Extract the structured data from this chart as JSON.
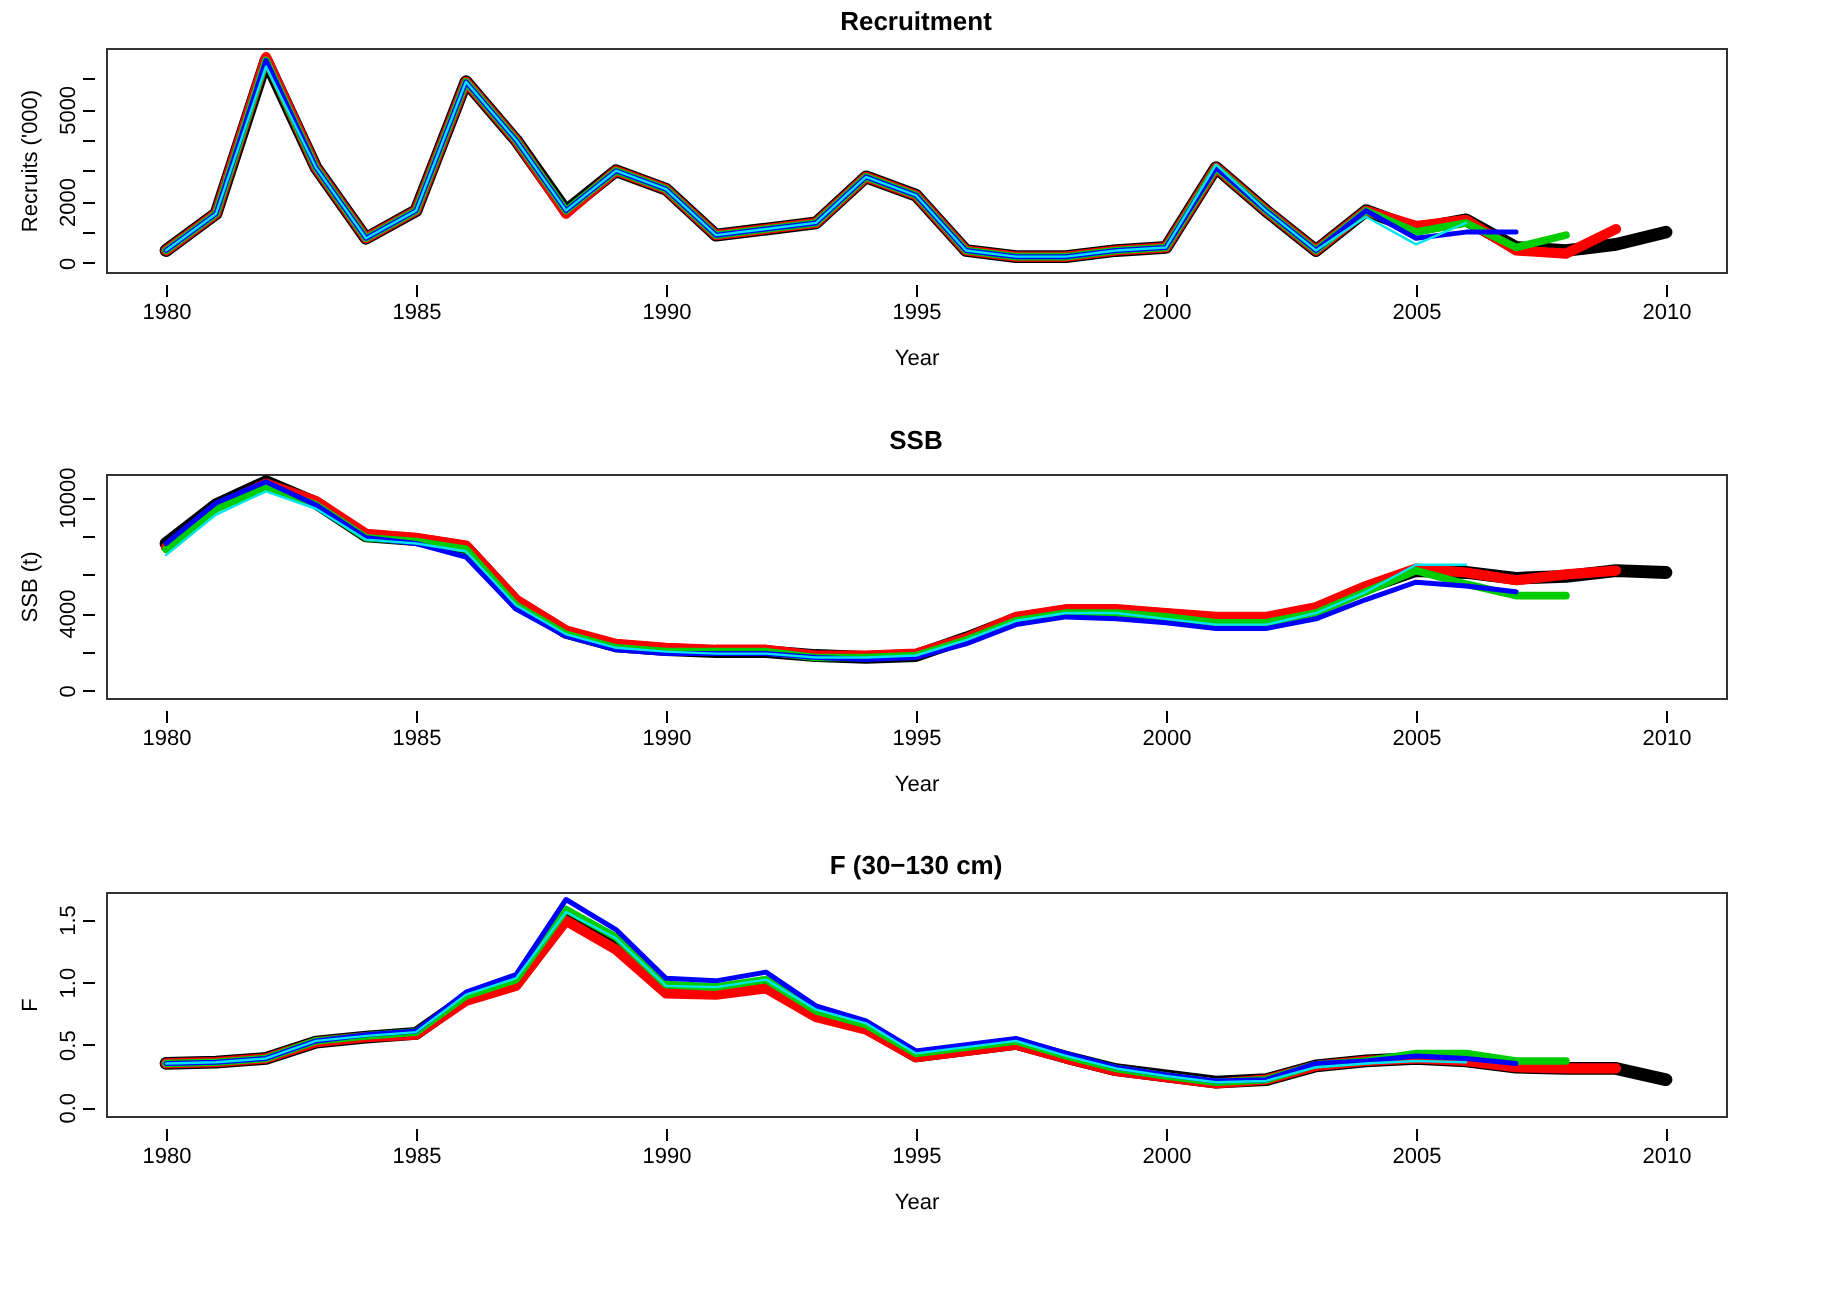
{
  "chart_data": [
    {
      "type": "line",
      "title": "Recruitment",
      "xlabel": "Year",
      "ylabel": "Recruits ('000)",
      "grid": false,
      "line_style": "solid",
      "x": [
        1980,
        1981,
        1982,
        1983,
        1984,
        1985,
        1986,
        1987,
        1988,
        1989,
        1990,
        1991,
        1992,
        1993,
        1994,
        1995,
        1996,
        1997,
        1998,
        1999,
        2000,
        2001,
        2002,
        2003,
        2004,
        2005,
        2006,
        2007,
        2008,
        2009,
        2010
      ],
      "xlim": [
        1978.8,
        2011.2
      ],
      "xticks": [
        1980,
        1985,
        1990,
        1995,
        2000,
        2005,
        2010
      ],
      "ylim": [
        -300,
        7000
      ],
      "yticks": [
        0,
        {
          "value": 1000,
          "label": null
        },
        2000,
        {
          "value": 3000,
          "label": null
        },
        {
          "value": 4000,
          "label": null
        },
        5000,
        {
          "value": 6000,
          "label": null
        }
      ],
      "series": [
        {
          "color": "#000000",
          "values": [
            400,
            1600,
            6600,
            3100,
            800,
            1700,
            5900,
            4000,
            1700,
            3000,
            2400,
            900,
            1100,
            1300,
            2800,
            2200,
            400,
            200,
            200,
            400,
            500,
            3100,
            1700,
            400,
            1700,
            1100,
            1400,
            500,
            400,
            600,
            1000
          ]
        },
        {
          "color": "#ff0000",
          "values": [
            400,
            1600,
            6700,
            3100,
            800,
            1700,
            5900,
            4000,
            1600,
            3000,
            2400,
            900,
            1100,
            1300,
            2800,
            2200,
            400,
            200,
            200,
            400,
            500,
            3100,
            1700,
            400,
            1700,
            1200,
            1400,
            400,
            300,
            1100,
            null
          ]
        },
        {
          "color": "#00cd00",
          "values": [
            400,
            1600,
            6600,
            3100,
            800,
            1700,
            5900,
            4000,
            1700,
            3000,
            2400,
            900,
            1100,
            1300,
            2800,
            2200,
            400,
            200,
            200,
            400,
            500,
            3100,
            1700,
            400,
            1700,
            1000,
            1300,
            500,
            900,
            null,
            null
          ]
        },
        {
          "color": "#0000ff",
          "values": [
            400,
            1600,
            6600,
            3100,
            800,
            1700,
            5900,
            4000,
            1700,
            3000,
            2400,
            900,
            1100,
            1300,
            2800,
            2200,
            400,
            200,
            200,
            400,
            500,
            3100,
            1700,
            400,
            1700,
            800,
            1000,
            1000,
            null,
            null,
            null
          ]
        },
        {
          "color": "#00e5ee",
          "values": [
            400,
            1600,
            6400,
            3100,
            800,
            1700,
            5900,
            4000,
            1700,
            3000,
            2400,
            900,
            1100,
            1300,
            2800,
            2200,
            400,
            200,
            200,
            400,
            500,
            3200,
            1700,
            400,
            1500,
            600,
            1300,
            null,
            null,
            null,
            null
          ]
        }
      ]
    },
    {
      "type": "line",
      "title": "SSB",
      "xlabel": "Year",
      "ylabel": "SSB (t)",
      "grid": false,
      "line_style": "solid",
      "x": [
        1980,
        1981,
        1982,
        1983,
        1984,
        1985,
        1986,
        1987,
        1988,
        1989,
        1990,
        1991,
        1992,
        1993,
        1994,
        1995,
        1996,
        1997,
        1998,
        1999,
        2000,
        2001,
        2002,
        2003,
        2004,
        2005,
        2006,
        2007,
        2008,
        2009,
        2010
      ],
      "xlim": [
        1978.8,
        2011.2
      ],
      "xticks": [
        1980,
        1985,
        1990,
        1995,
        2000,
        2005,
        2010
      ],
      "ylim": [
        -400,
        11200
      ],
      "yticks": [
        0,
        {
          "value": 2000,
          "label": null
        },
        4000,
        {
          "value": 6000,
          "label": null
        },
        {
          "value": 8000,
          "label": null
        },
        10000
      ],
      "series": [
        {
          "color": "#000000",
          "values": [
            7600,
            9600,
            10800,
            9700,
            8000,
            7800,
            7400,
            4600,
            3000,
            2300,
            2100,
            2000,
            2000,
            1800,
            1700,
            1800,
            2700,
            3700,
            4100,
            4100,
            3900,
            3700,
            3700,
            4200,
            5300,
            6200,
            6100,
            5800,
            5900,
            6200,
            6100
          ]
        },
        {
          "color": "#ff0000",
          "values": [
            7400,
            9500,
            10700,
            9800,
            8100,
            7900,
            7500,
            4700,
            3100,
            2400,
            2200,
            2100,
            2100,
            1800,
            1800,
            1900,
            2700,
            3800,
            4200,
            4200,
            4000,
            3800,
            3800,
            4300,
            5400,
            6300,
            6100,
            5700,
            6000,
            6200,
            null
          ]
        },
        {
          "color": "#00cd00",
          "values": [
            7300,
            9400,
            10500,
            9600,
            7900,
            7700,
            7300,
            4400,
            2900,
            2200,
            2000,
            2000,
            2000,
            1700,
            1700,
            1800,
            2600,
            3600,
            4000,
            4000,
            3800,
            3500,
            3500,
            4000,
            5100,
            6200,
            5500,
            4900,
            4900,
            null,
            null
          ]
        },
        {
          "color": "#0000ff",
          "values": [
            7600,
            9700,
            10800,
            9600,
            7900,
            7600,
            6900,
            4200,
            2800,
            2100,
            1900,
            1900,
            1900,
            1700,
            1600,
            1700,
            2400,
            3400,
            3800,
            3700,
            3500,
            3200,
            3200,
            3700,
            4700,
            5600,
            5400,
            5100,
            null,
            null,
            null
          ]
        },
        {
          "color": "#00e5ee",
          "values": [
            7000,
            9100,
            10300,
            9400,
            7800,
            7600,
            7200,
            4400,
            2900,
            2200,
            2000,
            1900,
            1900,
            1700,
            1700,
            1800,
            2600,
            3600,
            4000,
            4000,
            3700,
            3400,
            3400,
            4000,
            5100,
            6500,
            6500,
            null,
            null,
            null,
            null
          ]
        }
      ]
    },
    {
      "type": "line",
      "title": "F (30−130 cm)",
      "xlabel": "Year",
      "ylabel": "F",
      "grid": false,
      "line_style": "solid",
      "x": [
        1980,
        1981,
        1982,
        1983,
        1984,
        1985,
        1986,
        1987,
        1988,
        1989,
        1990,
        1991,
        1992,
        1993,
        1994,
        1995,
        1996,
        1997,
        1998,
        1999,
        2000,
        2001,
        2002,
        2003,
        2004,
        2005,
        2006,
        2007,
        2008,
        2009,
        2010
      ],
      "xlim": [
        1978.8,
        2011.2
      ],
      "xticks": [
        1980,
        1985,
        1990,
        1995,
        2000,
        2005,
        2010
      ],
      "ylim": [
        -0.07,
        1.72
      ],
      "yticks": [
        {
          "value": 0,
          "label": "0.0"
        },
        0.5,
        {
          "value": 1,
          "label": "1.0"
        },
        1.5
      ],
      "series": [
        {
          "color": "#000000",
          "values": [
            0.35,
            0.36,
            0.39,
            0.52,
            0.56,
            0.59,
            0.87,
            0.99,
            1.52,
            1.29,
            0.93,
            0.92,
            0.97,
            0.74,
            0.64,
            0.41,
            0.46,
            0.51,
            0.4,
            0.3,
            0.25,
            0.2,
            0.22,
            0.33,
            0.37,
            0.39,
            0.37,
            0.32,
            0.31,
            0.31,
            0.22
          ]
        },
        {
          "color": "#ff0000",
          "values": [
            0.35,
            0.36,
            0.39,
            0.52,
            0.56,
            0.58,
            0.85,
            0.97,
            1.49,
            1.26,
            0.91,
            0.9,
            0.95,
            0.72,
            0.62,
            0.4,
            0.45,
            0.5,
            0.39,
            0.29,
            0.24,
            0.19,
            0.22,
            0.33,
            0.37,
            0.39,
            0.37,
            0.32,
            0.31,
            0.31,
            null
          ]
        },
        {
          "color": "#00cd00",
          "values": [
            0.35,
            0.36,
            0.39,
            0.53,
            0.57,
            0.6,
            0.89,
            1.02,
            1.58,
            1.36,
            0.98,
            0.96,
            1.02,
            0.77,
            0.66,
            0.43,
            0.48,
            0.53,
            0.41,
            0.31,
            0.25,
            0.2,
            0.22,
            0.34,
            0.37,
            0.43,
            0.43,
            0.37,
            0.37,
            null,
            null
          ]
        },
        {
          "color": "#0000ff",
          "values": [
            0.35,
            0.36,
            0.39,
            0.53,
            0.58,
            0.61,
            0.92,
            1.06,
            1.66,
            1.42,
            1.03,
            1.01,
            1.08,
            0.81,
            0.69,
            0.45,
            0.5,
            0.55,
            0.43,
            0.32,
            0.26,
            0.21,
            0.22,
            0.35,
            0.37,
            0.41,
            0.39,
            0.35,
            null,
            null,
            null
          ]
        },
        {
          "color": "#00e5ee",
          "values": [
            0.35,
            0.36,
            0.39,
            0.53,
            0.57,
            0.6,
            0.9,
            1.03,
            1.56,
            1.35,
            0.97,
            0.96,
            1.02,
            0.78,
            0.67,
            0.43,
            0.48,
            0.53,
            0.41,
            0.31,
            0.25,
            0.2,
            0.21,
            0.32,
            0.35,
            0.37,
            0.36,
            null,
            null,
            null,
            null
          ]
        }
      ]
    }
  ]
}
